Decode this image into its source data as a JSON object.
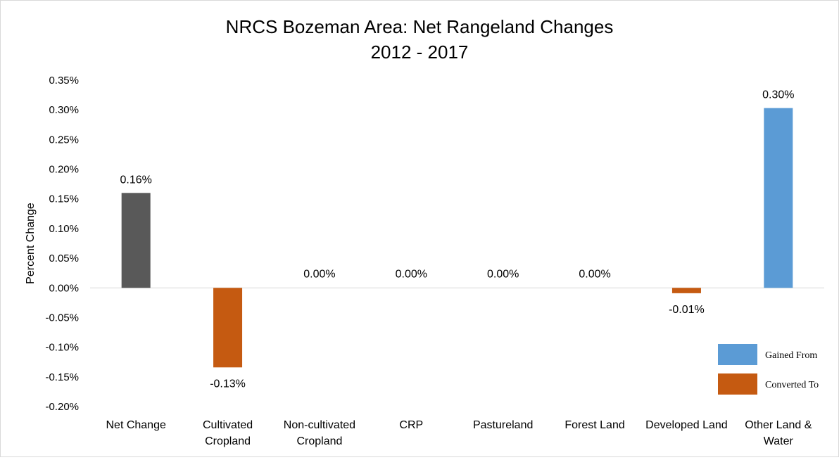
{
  "chart_data": {
    "type": "bar",
    "title": "NRCS Bozeman Area: Net Rangeland Changes",
    "subtitle": "2012 - 2017",
    "xlabel": "",
    "ylabel": "Percent Change",
    "ylim": [
      -0.2,
      0.35
    ],
    "ytick_step": 0.05,
    "ytick_labels": [
      "0.35%",
      "0.30%",
      "0.25%",
      "0.20%",
      "0.15%",
      "0.10%",
      "0.05%",
      "0.00%",
      "-0.05%",
      "-0.10%",
      "-0.15%",
      "-0.20%"
    ],
    "grid": false,
    "legend_position": "bottom-right",
    "categories": [
      [
        "Net Change"
      ],
      [
        "Cultivated",
        "Cropland"
      ],
      [
        "Non-cultivated",
        "Cropland"
      ],
      [
        "CRP"
      ],
      [
        "Pastureland"
      ],
      [
        "Forest Land"
      ],
      [
        "Developed Land"
      ],
      [
        "Other Land &",
        "Water"
      ]
    ],
    "values": [
      0.16,
      -0.134,
      0,
      0,
      0,
      0,
      -0.009,
      0.303
    ],
    "data_labels": [
      "0.16%",
      "-0.13%",
      "0.00%",
      "0.00%",
      "0.00%",
      "0.00%",
      "-0.01%",
      "0.30%"
    ],
    "bar_colors": [
      "#595959",
      "#c55a11",
      "#c55a11",
      "#c55a11",
      "#c55a11",
      "#c55a11",
      "#c55a11",
      "#5b9bd5"
    ],
    "legend": [
      {
        "name": "Gained From",
        "color": "#5b9bd5"
      },
      {
        "name": "Converted To",
        "color": "#c55a11"
      }
    ]
  }
}
